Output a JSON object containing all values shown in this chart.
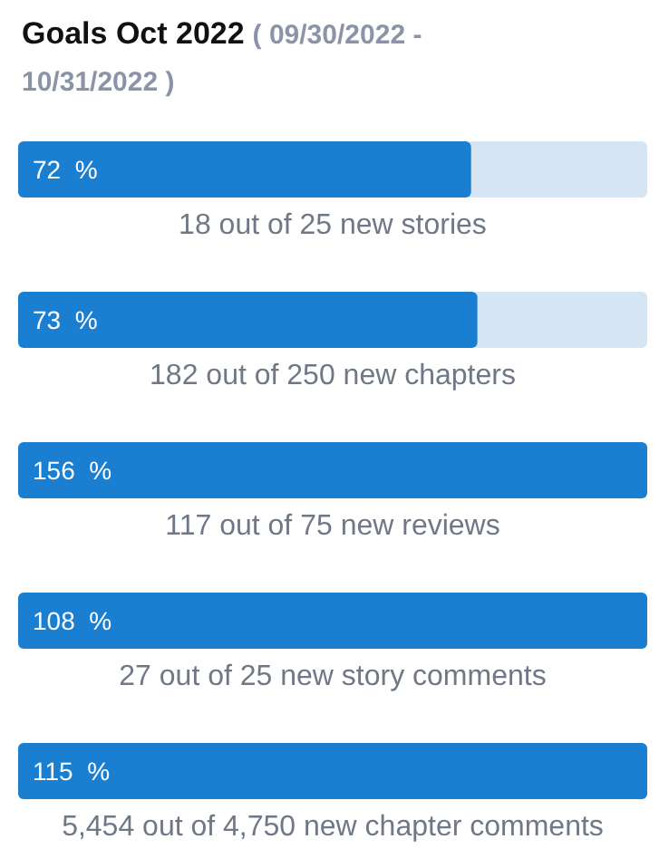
{
  "chart_data": {
    "type": "other",
    "title": "Goals Oct 2022",
    "subtitle": "( 09/30/2022 - 10/31/2022 )",
    "categories": [
      "18 out of 25 new stories",
      "182 out of 250 new chapters",
      "117 out of 75 new reviews",
      "27 out of 25 new story comments",
      "5,454 out of 4,750 new chapter comments"
    ],
    "values": [
      72,
      73,
      156,
      108,
      115
    ],
    "value_labels": [
      "72  %",
      "73  %",
      "156  %",
      "108  %",
      "115  %"
    ],
    "color": "#1a7fd1"
  }
}
